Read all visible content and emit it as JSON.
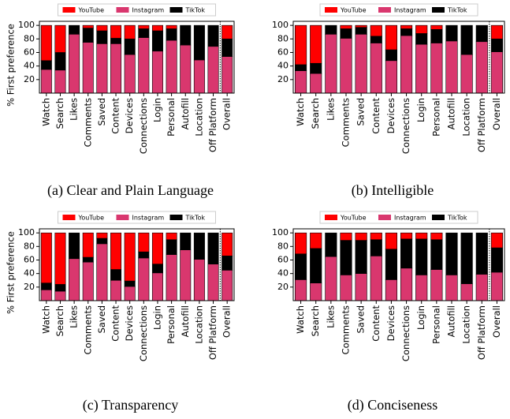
{
  "chart_data": [
    {
      "type": "bar",
      "stacked": true,
      "caption": "(a) Clear and Plain Language",
      "ylabel": "% First preference",
      "categories": [
        "Watch",
        "Search",
        "Likes",
        "Comments",
        "Saved",
        "Content",
        "Devices",
        "Connections",
        "Login",
        "Personal",
        "Autofill",
        "Location",
        "Off Platform",
        "Overall"
      ],
      "series": [
        {
          "name": "YouTube",
          "color": "#ff0000",
          "values": [
            52,
            40,
            0,
            4,
            8,
            19,
            20,
            5,
            8,
            5,
            0,
            0,
            0,
            20
          ]
        },
        {
          "name": "Instagram",
          "color": "#d9376e",
          "values": [
            35,
            34,
            87,
            75,
            73,
            73,
            57,
            82,
            62,
            78,
            71,
            49,
            69,
            54
          ]
        },
        {
          "name": "TikTok",
          "color": "#000000",
          "values": [
            13,
            26,
            13,
            21,
            19,
            8,
            23,
            13,
            30,
            17,
            29,
            51,
            31,
            26
          ]
        }
      ],
      "ylim": [
        0,
        106
      ],
      "yticks": [
        20,
        40,
        60,
        80,
        100
      ]
    },
    {
      "type": "bar",
      "stacked": true,
      "caption": "(b) Intelligible",
      "categories": [
        "Watch",
        "Search",
        "Likes",
        "Comments",
        "Saved",
        "Content",
        "Devices",
        "Connections",
        "Login",
        "Personal",
        "Autofill",
        "Location",
        "Off Platform",
        "Overall"
      ],
      "series": [
        {
          "name": "YouTube",
          "color": "#ff0000",
          "values": [
            58,
            56,
            0,
            5,
            3,
            16,
            36,
            5,
            12,
            6,
            0,
            0,
            0,
            20
          ]
        },
        {
          "name": "Instagram",
          "color": "#d9376e",
          "values": [
            33,
            29,
            87,
            81,
            87,
            74,
            48,
            85,
            72,
            74,
            77,
            57,
            76,
            61
          ]
        },
        {
          "name": "TikTok",
          "color": "#000000",
          "values": [
            9,
            15,
            13,
            14,
            10,
            10,
            16,
            10,
            16,
            20,
            23,
            43,
            24,
            19
          ]
        }
      ],
      "ylim": [
        0,
        106
      ],
      "yticks": [
        20,
        40,
        60,
        80,
        100
      ]
    },
    {
      "type": "bar",
      "stacked": true,
      "caption": "(c) Transparency",
      "ylabel": "% First preference",
      "categories": [
        "Watch",
        "Search",
        "Likes",
        "Comments",
        "Saved",
        "Content",
        "Devices",
        "Connections",
        "Login",
        "Personal",
        "Autofill",
        "Location",
        "Off Platform",
        "Overall"
      ],
      "series": [
        {
          "name": "YouTube",
          "color": "#ff0000",
          "values": [
            74,
            76,
            0,
            36,
            8,
            54,
            71,
            28,
            46,
            10,
            0,
            0,
            0,
            34
          ]
        },
        {
          "name": "Instagram",
          "color": "#d9376e",
          "values": [
            16,
            14,
            62,
            57,
            84,
            30,
            21,
            63,
            41,
            68,
            75,
            61,
            54,
            45
          ]
        },
        {
          "name": "TikTok",
          "color": "#000000",
          "values": [
            10,
            10,
            38,
            7,
            8,
            16,
            8,
            9,
            13,
            22,
            25,
            39,
            46,
            21
          ]
        }
      ],
      "ylim": [
        0,
        106
      ],
      "yticks": [
        20,
        40,
        60,
        80,
        100
      ]
    },
    {
      "type": "bar",
      "stacked": true,
      "caption": "(d) Conciseness",
      "categories": [
        "Watch",
        "Search",
        "Likes",
        "Comments",
        "Saved",
        "Content",
        "Devices",
        "Connections",
        "Login",
        "Personal",
        "Autofill",
        "Location",
        "Off Platform",
        "Overall"
      ],
      "series": [
        {
          "name": "YouTube",
          "color": "#ff0000",
          "values": [
            31,
            23,
            0,
            11,
            11,
            10,
            24,
            9,
            9,
            10,
            0,
            0,
            0,
            22
          ]
        },
        {
          "name": "Instagram",
          "color": "#d9376e",
          "values": [
            31,
            26,
            65,
            38,
            40,
            66,
            31,
            48,
            38,
            46,
            38,
            25,
            39,
            42
          ]
        },
        {
          "name": "TikTok",
          "color": "#000000",
          "values": [
            38,
            51,
            35,
            51,
            49,
            24,
            45,
            43,
            53,
            44,
            62,
            75,
            61,
            36
          ]
        }
      ],
      "ylim": [
        0,
        106
      ],
      "yticks": [
        20,
        40,
        60,
        80,
        100
      ]
    }
  ]
}
